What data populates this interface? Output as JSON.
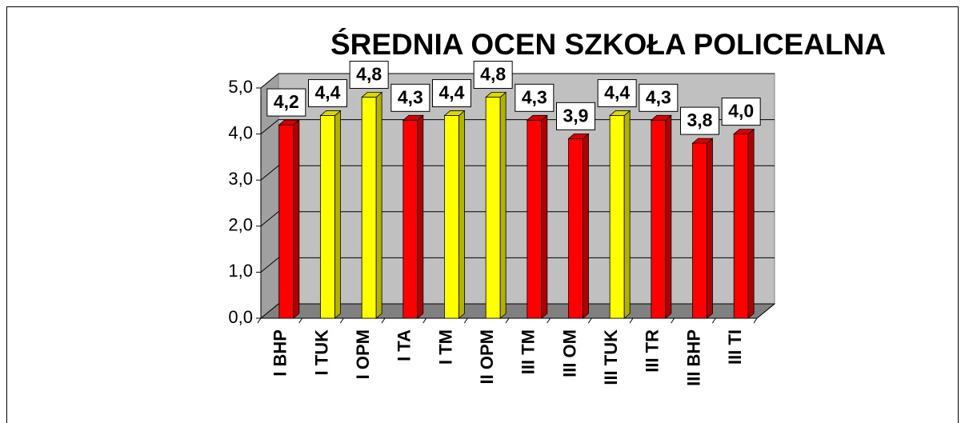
{
  "chart_data": {
    "type": "bar",
    "title": "ŚREDNIA OCEN SZKOŁA POLICEALNA",
    "categories": [
      "I BHP",
      "I TUK",
      "I OPM",
      "I TA",
      "I TM",
      "II OPM",
      "III TM",
      "III OM",
      "III TUK",
      "III TR",
      "III BHP",
      "III TI"
    ],
    "values": [
      4.2,
      4.4,
      4.8,
      4.3,
      4.4,
      4.8,
      4.3,
      3.9,
      4.4,
      4.3,
      3.8,
      4.0
    ],
    "value_labels": [
      "4,2",
      "4,4",
      "4,8",
      "4,3",
      "4,4",
      "4,8",
      "4,3",
      "3,9",
      "4,4",
      "4,3",
      "3,8",
      "4,0"
    ],
    "colors": [
      "#ff0000",
      "#ffff00",
      "#ffff00",
      "#ff0000",
      "#ffff00",
      "#ffff00",
      "#ff0000",
      "#ff0000",
      "#ffff00",
      "#ff0000",
      "#ff0000",
      "#ff0000"
    ],
    "ylim": [
      0,
      5
    ],
    "yticks": [
      {
        "value": 0,
        "label": "0,0"
      },
      {
        "value": 1,
        "label": "1,0"
      },
      {
        "value": 2,
        "label": "2,0"
      },
      {
        "value": 3,
        "label": "3,0"
      },
      {
        "value": 4,
        "label": "4,0"
      },
      {
        "value": 5,
        "label": "5,0"
      }
    ],
    "grid": true
  }
}
